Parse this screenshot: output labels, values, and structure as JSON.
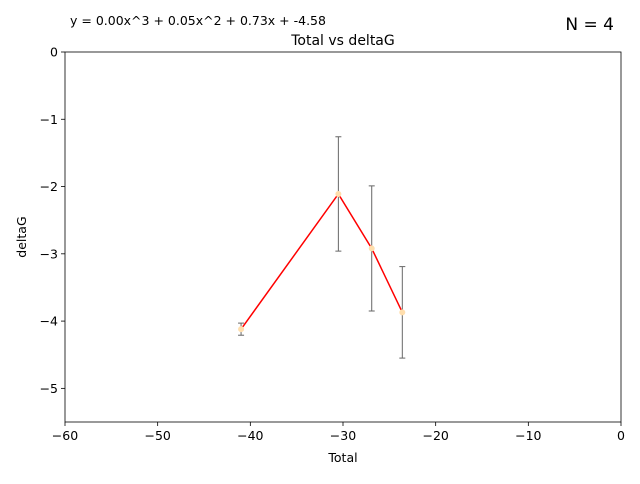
{
  "chart_data": {
    "type": "line",
    "title": "Total vs deltaG",
    "equation": "y = 0.00x^3 + 0.05x^2 + 0.73x + -4.58",
    "n_label": "N = 4",
    "xlabel": "Total",
    "ylabel": "deltaG",
    "xlim": [
      -60,
      0
    ],
    "ylim": [
      -5.5,
      0
    ],
    "x_ticks": [
      -60,
      -50,
      -40,
      -30,
      -20,
      -10,
      0
    ],
    "x_tick_labels": [
      "−60",
      "−50",
      "−40",
      "−30",
      "−20",
      "−10",
      "0"
    ],
    "y_ticks": [
      0,
      -1,
      -2,
      -3,
      -4,
      -5
    ],
    "y_tick_labels": [
      "0",
      "−1",
      "−2",
      "−3",
      "−4",
      "−5"
    ],
    "grid": false,
    "colors": {
      "line": "#ff0000",
      "marker": "#ffdead",
      "errorbar": "#666666",
      "axis": "#000000"
    },
    "series": [
      {
        "x": [
          -41.0,
          -30.5,
          -26.9,
          -23.6
        ],
        "y": [
          -4.12,
          -2.11,
          -2.92,
          -3.87
        ],
        "yerr": [
          0.09,
          0.85,
          0.93,
          0.68
        ]
      }
    ]
  }
}
